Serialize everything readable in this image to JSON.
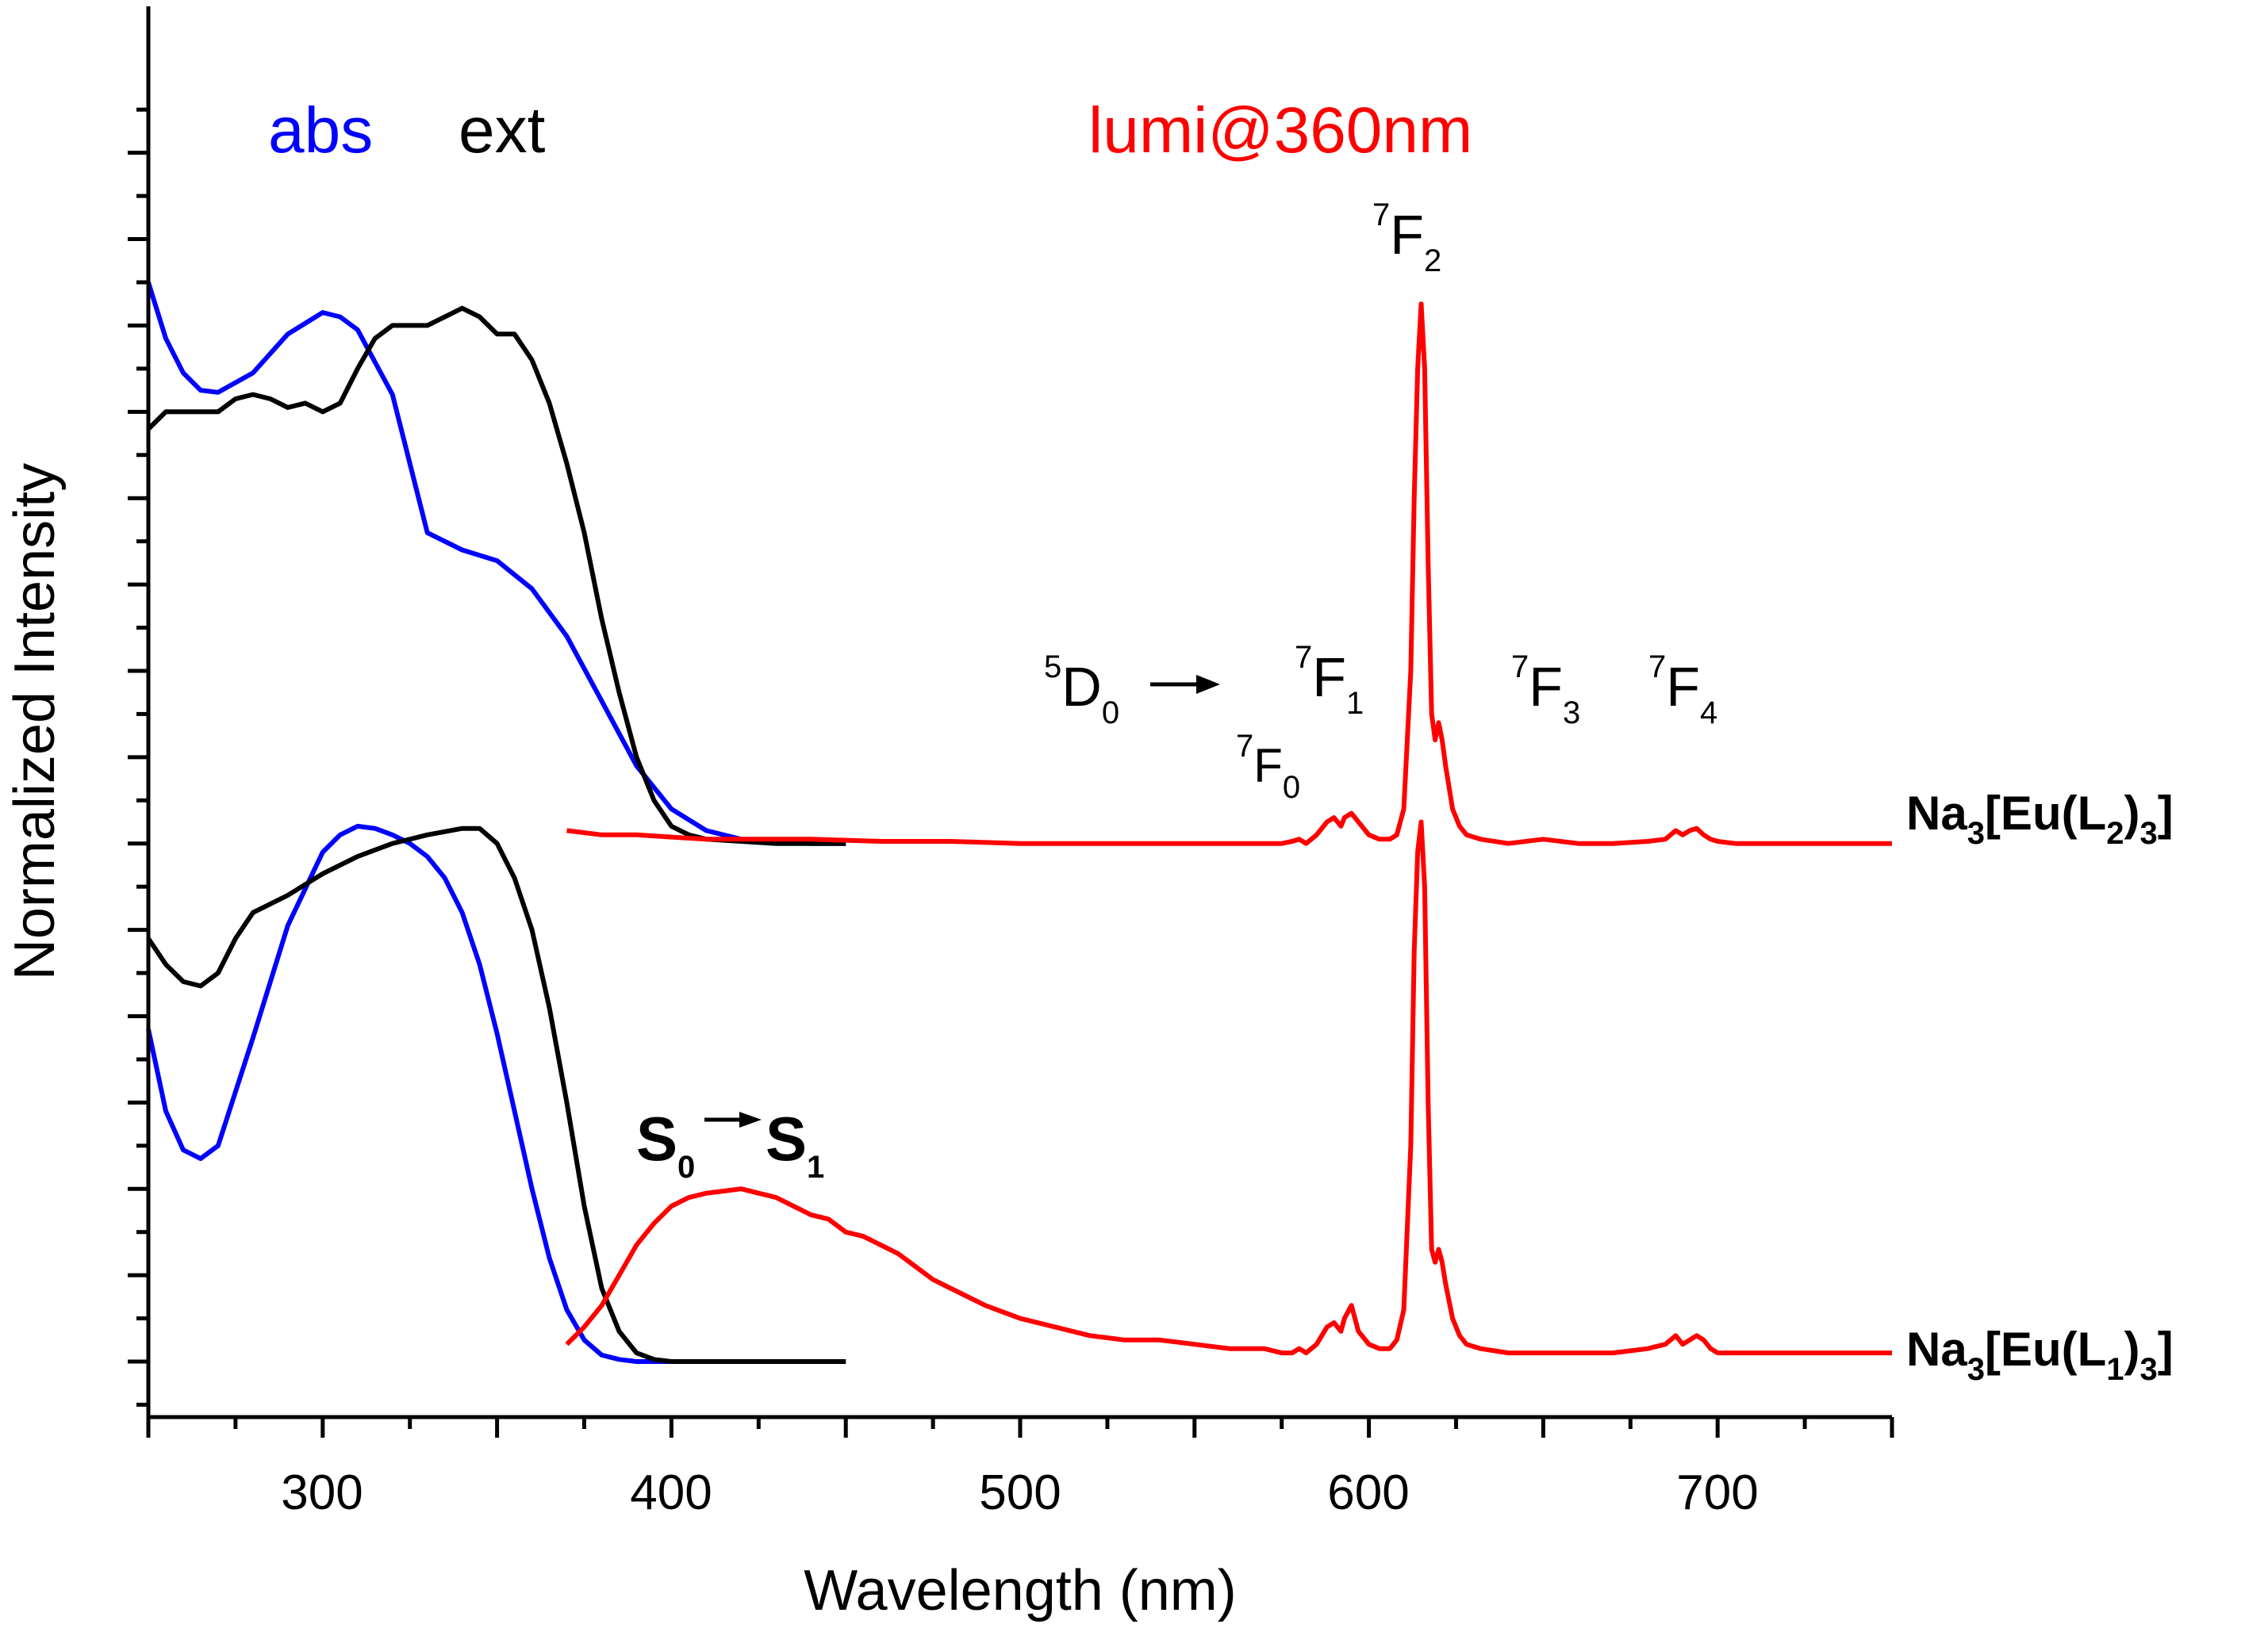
{
  "chart_data": {
    "type": "line",
    "xlabel": "Wavelength (nm)",
    "ylabel": "Normalized Intensity",
    "xlim": [
      250,
      750
    ],
    "ylim": [
      0,
      2.5
    ],
    "x_ticks": [
      "300",
      "400",
      "500",
      "600",
      "700"
    ],
    "legend": [
      {
        "label": "abs",
        "color": "#0000ff"
      },
      {
        "label": "ext",
        "color": "#000000"
      },
      {
        "label": "lumi@360nm",
        "color": "#ff0000"
      }
    ],
    "colors": {
      "abs": "#0000ff",
      "ext": "#000000",
      "lumi": "#ff0000"
    },
    "compounds": [
      {
        "name": "Na",
        "sub1": "3",
        "mid": "[Eu(L",
        "sub2": "2",
        "end": ")",
        "sub3": "3",
        "close": "]",
        "offset": 1.25
      },
      {
        "name": "Na",
        "sub1": "3",
        "mid": "[Eu(L",
        "sub2": "1",
        "end": ")",
        "sub3": "3",
        "close": "]",
        "offset": 0
      }
    ],
    "annotations": {
      "d0_base": "D",
      "d0_sup": "5",
      "d0_sub": "0",
      "f_base": "F",
      "f_sup": "7",
      "f0_sub": "0",
      "f1_sub": "1",
      "f2_sub": "2",
      "f3_sub": "3",
      "f4_sub": "4",
      "s_base": "S",
      "s0_sub": "0",
      "s1_sub": "1"
    },
    "series": [
      {
        "name": "abs",
        "compound": "L2",
        "color": "#0000ff",
        "x": [
          250,
          255,
          260,
          265,
          270,
          280,
          290,
          300,
          305,
          310,
          320,
          330,
          340,
          350,
          360,
          370,
          380,
          390,
          400,
          410,
          420,
          430,
          440,
          450
        ],
        "y": [
          2.5,
          2.37,
          2.29,
          2.25,
          2.245,
          2.29,
          2.38,
          2.43,
          2.42,
          2.39,
          2.24,
          1.92,
          1.88,
          1.855,
          1.79,
          1.68,
          1.53,
          1.38,
          1.28,
          1.23,
          1.21,
          1.205,
          1.2,
          1.2
        ]
      },
      {
        "name": "ext",
        "compound": "L2",
        "color": "#000000",
        "x": [
          250,
          255,
          260,
          265,
          270,
          275,
          280,
          285,
          290,
          295,
          300,
          305,
          310,
          315,
          320,
          325,
          330,
          335,
          340,
          345,
          350,
          355,
          360,
          365,
          370,
          375,
          380,
          385,
          390,
          395,
          400,
          405,
          410,
          420,
          430,
          440,
          450
        ],
        "y": [
          2.16,
          2.2,
          2.2,
          2.2,
          2.2,
          2.23,
          2.24,
          2.23,
          2.21,
          2.22,
          2.2,
          2.22,
          2.3,
          2.37,
          2.4,
          2.4,
          2.4,
          2.42,
          2.44,
          2.42,
          2.38,
          2.38,
          2.32,
          2.22,
          2.08,
          1.92,
          1.72,
          1.55,
          1.4,
          1.3,
          1.24,
          1.22,
          1.21,
          1.205,
          1.2,
          1.2,
          1.2
        ]
      },
      {
        "name": "abs",
        "compound": "L1",
        "color": "#0000ff",
        "x": [
          250,
          255,
          260,
          265,
          270,
          280,
          290,
          300,
          305,
          310,
          315,
          320,
          325,
          330,
          335,
          340,
          345,
          350,
          355,
          360,
          365,
          370,
          375,
          380,
          385,
          390,
          400,
          410,
          420,
          430,
          440,
          450
        ],
        "y": [
          0.77,
          0.58,
          0.49,
          0.47,
          0.5,
          0.75,
          1.01,
          1.18,
          1.22,
          1.24,
          1.235,
          1.22,
          1.2,
          1.17,
          1.12,
          1.04,
          0.92,
          0.76,
          0.58,
          0.4,
          0.24,
          0.12,
          0.05,
          0.015,
          0.005,
          0,
          0,
          0,
          0,
          0,
          0,
          0
        ]
      },
      {
        "name": "ext",
        "compound": "L1",
        "color": "#000000",
        "x": [
          250,
          255,
          260,
          265,
          270,
          275,
          280,
          290,
          300,
          310,
          320,
          330,
          340,
          345,
          350,
          355,
          360,
          365,
          370,
          375,
          380,
          385,
          390,
          395,
          400,
          410,
          420,
          450
        ],
        "y": [
          0.98,
          0.92,
          0.88,
          0.87,
          0.9,
          0.98,
          1.04,
          1.08,
          1.13,
          1.17,
          1.2,
          1.22,
          1.235,
          1.235,
          1.2,
          1.12,
          1.0,
          0.82,
          0.6,
          0.36,
          0.17,
          0.07,
          0.02,
          0.005,
          0,
          0,
          0,
          0
        ]
      },
      {
        "name": "lumi",
        "compound": "L1",
        "color": "#ff0000",
        "x": [
          370,
          375,
          380,
          385,
          390,
          395,
          400,
          405,
          410,
          415,
          420,
          425,
          430,
          435,
          440,
          445,
          450,
          455,
          460,
          465,
          470,
          475,
          480,
          490,
          500,
          510,
          520,
          530,
          540,
          550,
          560,
          570,
          575,
          578,
          580,
          582,
          585,
          588,
          590,
          592,
          593,
          595,
          597,
          600,
          603,
          606,
          608,
          610,
          612,
          613,
          614,
          615,
          616,
          617,
          618,
          619,
          620,
          621,
          622,
          624,
          626,
          628,
          632,
          640,
          650,
          660,
          670,
          680,
          685,
          688,
          690,
          692,
          694,
          696,
          698,
          700,
          705,
          710,
          720,
          730,
          740,
          750
        ],
        "y": [
          0.04,
          0.08,
          0.13,
          0.2,
          0.27,
          0.32,
          0.36,
          0.38,
          0.39,
          0.395,
          0.4,
          0.39,
          0.38,
          0.36,
          0.34,
          0.33,
          0.3,
          0.29,
          0.27,
          0.25,
          0.22,
          0.19,
          0.17,
          0.13,
          0.1,
          0.08,
          0.06,
          0.05,
          0.05,
          0.04,
          0.03,
          0.03,
          0.02,
          0.02,
          0.03,
          0.02,
          0.04,
          0.08,
          0.09,
          0.07,
          0.1,
          0.13,
          0.07,
          0.04,
          0.03,
          0.03,
          0.05,
          0.12,
          0.5,
          0.95,
          1.18,
          1.25,
          1.1,
          0.6,
          0.26,
          0.23,
          0.26,
          0.23,
          0.18,
          0.1,
          0.06,
          0.04,
          0.03,
          0.02,
          0.02,
          0.02,
          0.02,
          0.03,
          0.04,
          0.06,
          0.04,
          0.05,
          0.06,
          0.05,
          0.03,
          0.02,
          0.02,
          0.02,
          0.02,
          0.02,
          0.02,
          0.02
        ]
      },
      {
        "name": "lumi",
        "compound": "L2",
        "color": "#ff0000",
        "x": [
          370,
          380,
          390,
          400,
          410,
          420,
          440,
          460,
          480,
          500,
          520,
          540,
          560,
          575,
          578,
          580,
          582,
          585,
          588,
          590,
          592,
          593,
          595,
          597,
          600,
          603,
          606,
          608,
          610,
          612,
          613,
          614,
          615,
          616,
          617,
          618,
          619,
          620,
          621,
          622,
          624,
          626,
          628,
          632,
          640,
          650,
          660,
          670,
          680,
          685,
          688,
          690,
          692,
          694,
          696,
          698,
          700,
          705,
          710,
          720,
          730,
          740,
          750
        ],
        "y": [
          1.23,
          1.22,
          1.22,
          1.215,
          1.21,
          1.21,
          1.21,
          1.205,
          1.205,
          1.2,
          1.2,
          1.2,
          1.2,
          1.2,
          1.205,
          1.21,
          1.2,
          1.22,
          1.25,
          1.26,
          1.24,
          1.26,
          1.27,
          1.25,
          1.22,
          1.21,
          1.21,
          1.22,
          1.28,
          1.6,
          2.0,
          2.3,
          2.45,
          2.3,
          1.85,
          1.5,
          1.44,
          1.48,
          1.44,
          1.38,
          1.28,
          1.24,
          1.22,
          1.21,
          1.2,
          1.21,
          1.2,
          1.2,
          1.205,
          1.21,
          1.23,
          1.22,
          1.23,
          1.235,
          1.22,
          1.21,
          1.205,
          1.2,
          1.2,
          1.2,
          1.2,
          1.2,
          1.2
        ]
      }
    ]
  }
}
